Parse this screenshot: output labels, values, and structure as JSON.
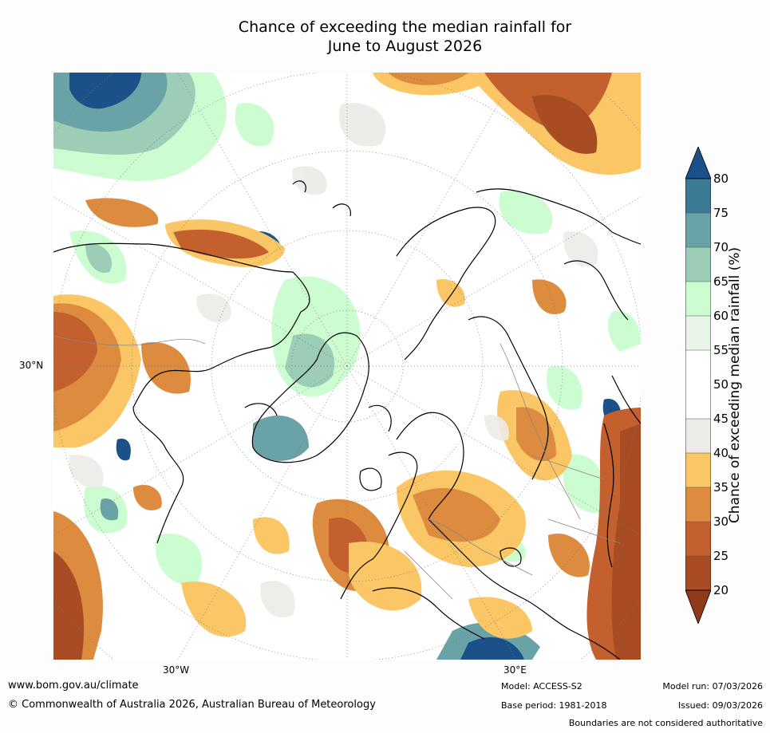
{
  "title_line1": "Chance of exceeding the median rainfall for",
  "title_line2": "June to August 2026",
  "map": {
    "lat_label": "30°N",
    "lon_labels": [
      "30°W",
      "30°E"
    ]
  },
  "colorbar": {
    "label": "Chance of exceeding median rainfall (%)",
    "ticks": [
      "20",
      "25",
      "30",
      "35",
      "40",
      "45",
      "50",
      "55",
      "60",
      "65",
      "70",
      "75",
      "80"
    ],
    "colors": {
      "below20": "#8f3a1a",
      "20-25": "#a84d23",
      "25-30": "#c3602d",
      "30-35": "#dd8b3f",
      "35-40": "#fbc766",
      "40-45": "#ecebe7",
      "45-55": "#ffffff",
      "55-60": "#e9f5e9",
      "60-65": "#ccfdd0",
      "65-70": "#9ccdb7",
      "70-75": "#6aa3a7",
      "75-80": "#3d7a95",
      "above80": "#1b5088"
    }
  },
  "footer": {
    "website": "www.bom.gov.au/climate",
    "copyright": "© Commonwealth of Australia 2026, Australian Bureau of Meteorology",
    "model": "Model: ACCESS-S2",
    "base_period": "Base period: 1981-2018",
    "model_run": "Model run: 07/03/2026",
    "issued": "Issued: 09/03/2026",
    "disclaimer": "Boundaries are not considered authoritative"
  }
}
